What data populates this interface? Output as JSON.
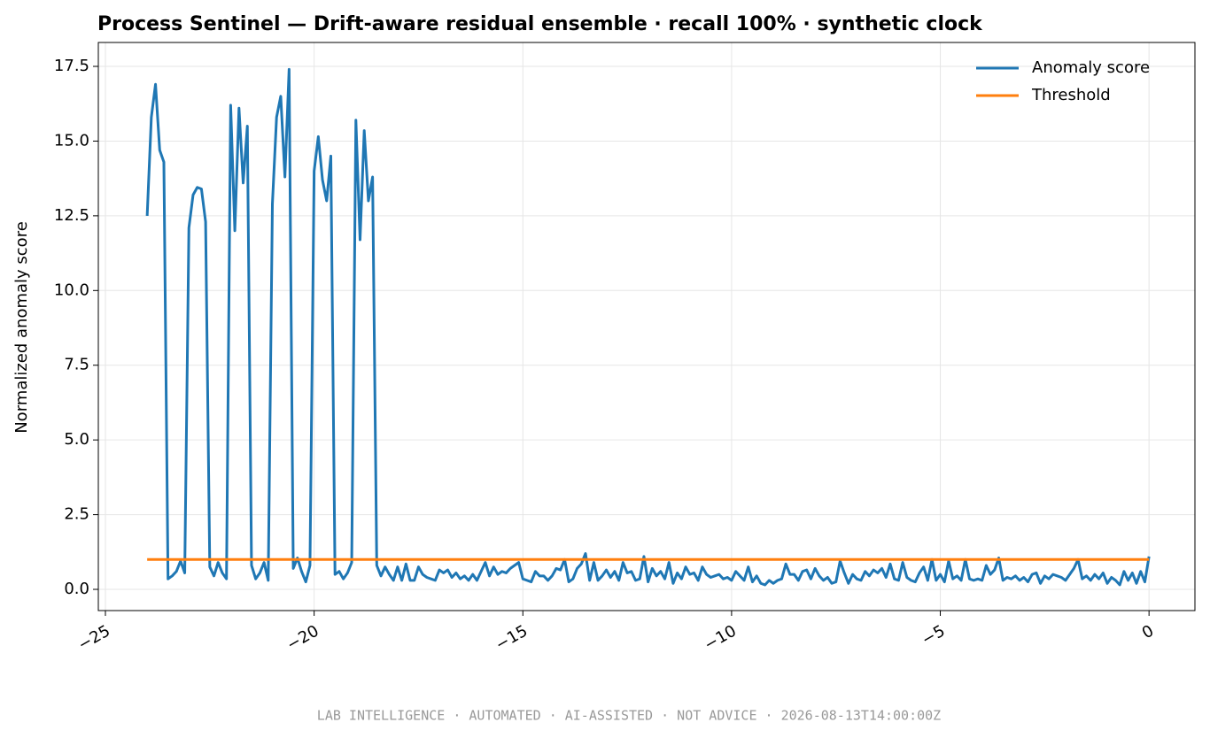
{
  "chart_data": {
    "type": "line",
    "title": "Process Sentinel — Drift-aware residual ensemble · recall 100% · synthetic clock",
    "y_label": "Normalized anomaly score",
    "xlim": [
      -25.17,
      1.1
    ],
    "ylim": [
      -0.71,
      18.3
    ],
    "xticks": [
      {
        "value": -25,
        "label": "−25"
      },
      {
        "value": -20,
        "label": "−20"
      },
      {
        "value": -15,
        "label": "−15"
      },
      {
        "value": -10,
        "label": "−10"
      },
      {
        "value": -5,
        "label": "−5"
      },
      0
    ],
    "yticks": [
      {
        "value": 0,
        "label": "0.0"
      },
      2.5,
      {
        "value": 5,
        "label": "5.0"
      },
      7.5,
      {
        "value": 10,
        "label": "10.0"
      },
      12.5,
      {
        "value": 15,
        "label": "15.0"
      },
      17.5
    ],
    "grid": true,
    "legend": "upper right",
    "series": [
      {
        "name": "Anomaly score",
        "color": "#1f77b4",
        "x": [
          -24,
          -23.9,
          -23.8,
          -23.7,
          -23.6,
          -23.5,
          -23.4,
          -23.3,
          -23.2,
          -23.1,
          -23,
          -22.9,
          -22.8,
          -22.7,
          -22.6,
          -22.5,
          -22.4,
          -22.3,
          -22.2,
          -22.1,
          -22,
          -21.9,
          -21.8,
          -21.7,
          -21.6,
          -21.5,
          -21.4,
          -21.3,
          -21.2,
          -21.1,
          -21,
          -20.9,
          -20.8,
          -20.7,
          -20.6,
          -20.5,
          -20.4,
          -20.3,
          -20.2,
          -20.1,
          -20,
          -19.9,
          -19.8,
          -19.7,
          -19.6,
          -19.5,
          -19.4,
          -19.3,
          -19.2,
          -19.1,
          -19,
          -18.9,
          -18.8,
          -18.7,
          -18.6,
          -18.5,
          -18.4,
          -18.3,
          -18.2,
          -18.1,
          -18,
          -17.9,
          -17.8,
          -17.7,
          -17.6,
          -17.5,
          -17.4,
          -17.3,
          -17.2,
          -17.1,
          -17,
          -16.9,
          -16.8,
          -16.7,
          -16.6,
          -16.5,
          -16.4,
          -16.3,
          -16.2,
          -16.1,
          -16,
          -15.9,
          -15.8,
          -15.7,
          -15.6,
          -15.5,
          -15.4,
          -15.3,
          -15.2,
          -15.1,
          -15,
          -14.9,
          -14.8,
          -14.7,
          -14.6,
          -14.5,
          -14.4,
          -14.3,
          -14.2,
          -14.1,
          -14,
          -13.9,
          -13.8,
          -13.7,
          -13.6,
          -13.5,
          -13.4,
          -13.3,
          -13.2,
          -13.1,
          -13,
          -12.9,
          -12.8,
          -12.7,
          -12.6,
          -12.5,
          -12.4,
          -12.3,
          -12.2,
          -12.1,
          -12,
          -11.9,
          -11.8,
          -11.7,
          -11.6,
          -11.5,
          -11.4,
          -11.3,
          -11.2,
          -11.1,
          -11,
          -10.9,
          -10.8,
          -10.7,
          -10.6,
          -10.5,
          -10.4,
          -10.3,
          -10.2,
          -10.1,
          -10,
          -9.9,
          -9.8,
          -9.7,
          -9.6,
          -9.5,
          -9.4,
          -9.3,
          -9.2,
          -9.1,
          -9,
          -8.9,
          -8.8,
          -8.7,
          -8.6,
          -8.5,
          -8.4,
          -8.3,
          -8.2,
          -8.1,
          -8,
          -7.9,
          -7.8,
          -7.7,
          -7.6,
          -7.5,
          -7.4,
          -7.3,
          -7.2,
          -7.1,
          -7,
          -6.9,
          -6.8,
          -6.7,
          -6.6,
          -6.5,
          -6.4,
          -6.3,
          -6.2,
          -6.1,
          -6,
          -5.9,
          -5.8,
          -5.7,
          -5.6,
          -5.5,
          -5.4,
          -5.3,
          -5.2,
          -5.1,
          -5,
          -4.9,
          -4.8,
          -4.7,
          -4.6,
          -4.5,
          -4.4,
          -4.3,
          -4.2,
          -4.1,
          -4,
          -3.9,
          -3.8,
          -3.7,
          -3.6,
          -3.5,
          -3.4,
          -3.3,
          -3.2,
          -3.1,
          -3,
          -2.9,
          -2.8,
          -2.7,
          -2.6,
          -2.5,
          -2.4,
          -2.3,
          -2.2,
          -2.1,
          -2,
          -1.9,
          -1.8,
          -1.7,
          -1.6,
          -1.5,
          -1.4,
          -1.3,
          -1.2,
          -1.1,
          -1,
          -0.9,
          -0.8,
          -0.7,
          -0.6,
          -0.5,
          -0.4,
          -0.3,
          -0.2,
          -0.1,
          0
        ],
        "values": [
          12.5,
          15.8,
          16.9,
          14.7,
          14.3,
          0.35,
          0.45,
          0.6,
          0.95,
          0.55,
          12.1,
          13.2,
          13.45,
          13.4,
          12.3,
          0.75,
          0.45,
          0.9,
          0.55,
          0.35,
          16.2,
          12.0,
          16.1,
          13.6,
          15.5,
          0.8,
          0.35,
          0.55,
          0.9,
          0.3,
          12.9,
          15.8,
          16.5,
          13.8,
          17.4,
          0.7,
          1.05,
          0.6,
          0.25,
          0.8,
          14.0,
          15.15,
          13.7,
          13.0,
          14.5,
          0.5,
          0.6,
          0.35,
          0.55,
          0.9,
          15.7,
          11.7,
          15.35,
          13.0,
          13.8,
          0.8,
          0.45,
          0.75,
          0.5,
          0.3,
          0.75,
          0.3,
          0.85,
          0.3,
          0.3,
          0.75,
          0.5,
          0.4,
          0.35,
          0.3,
          0.65,
          0.55,
          0.65,
          0.4,
          0.55,
          0.35,
          0.45,
          0.3,
          0.5,
          0.3,
          0.6,
          0.9,
          0.45,
          0.75,
          0.5,
          0.6,
          0.55,
          0.7,
          0.8,
          0.9,
          0.35,
          0.3,
          0.25,
          0.6,
          0.45,
          0.45,
          0.3,
          0.45,
          0.7,
          0.65,
          1.0,
          0.25,
          0.35,
          0.7,
          0.85,
          1.2,
          0.3,
          0.9,
          0.3,
          0.45,
          0.65,
          0.4,
          0.6,
          0.3,
          0.9,
          0.55,
          0.6,
          0.3,
          0.35,
          1.1,
          0.25,
          0.7,
          0.45,
          0.6,
          0.35,
          0.9,
          0.2,
          0.55,
          0.35,
          0.75,
          0.5,
          0.55,
          0.3,
          0.75,
          0.5,
          0.4,
          0.45,
          0.5,
          0.35,
          0.4,
          0.3,
          0.6,
          0.45,
          0.3,
          0.75,
          0.25,
          0.45,
          0.2,
          0.15,
          0.3,
          0.2,
          0.3,
          0.35,
          0.85,
          0.5,
          0.5,
          0.3,
          0.6,
          0.65,
          0.35,
          0.7,
          0.45,
          0.3,
          0.4,
          0.2,
          0.25,
          0.95,
          0.55,
          0.2,
          0.5,
          0.35,
          0.3,
          0.6,
          0.45,
          0.65,
          0.55,
          0.7,
          0.4,
          0.85,
          0.35,
          0.3,
          0.9,
          0.4,
          0.3,
          0.25,
          0.55,
          0.75,
          0.3,
          1.0,
          0.3,
          0.5,
          0.25,
          0.95,
          0.35,
          0.45,
          0.3,
          1.0,
          0.35,
          0.3,
          0.35,
          0.3,
          0.8,
          0.5,
          0.65,
          1.05,
          0.3,
          0.4,
          0.35,
          0.45,
          0.3,
          0.4,
          0.25,
          0.5,
          0.55,
          0.2,
          0.45,
          0.35,
          0.5,
          0.45,
          0.4,
          0.3,
          0.5,
          0.7,
          1.0,
          0.35,
          0.45,
          0.3,
          0.5,
          0.35,
          0.55,
          0.2,
          0.4,
          0.3,
          0.15,
          0.6,
          0.3,
          0.55,
          0.2,
          0.6,
          0.25,
          1.1
        ]
      },
      {
        "name": "Threshold",
        "color": "#ff7f0e",
        "x": [
          -24,
          0
        ],
        "values": [
          1,
          1
        ]
      }
    ]
  },
  "footer": "LAB INTELLIGENCE · AUTOMATED · AI-ASSISTED · NOT ADVICE · 2026-08-13T14:00:00Z"
}
